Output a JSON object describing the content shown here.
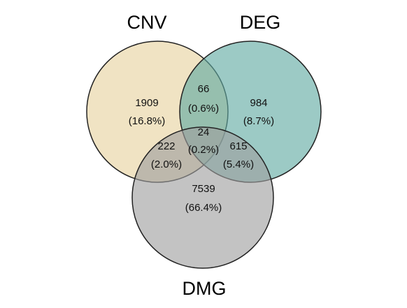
{
  "sets": [
    {
      "name": "CNV",
      "color": "#E6D29E"
    },
    {
      "name": "DEG",
      "color": "#5FA9A2"
    },
    {
      "name": "DMG",
      "color": "#9E9E9E"
    }
  ],
  "regions": {
    "cnv_only": {
      "count": "1909",
      "percent": "(16.8%)"
    },
    "deg_only": {
      "count": "984",
      "percent": "(8.7%)"
    },
    "dmg_only": {
      "count": "7539",
      "percent": "(66.4%)"
    },
    "cnv_deg": {
      "count": "66",
      "percent": "(0.6%)"
    },
    "cnv_dmg": {
      "count": "222",
      "percent": "(2.0%)"
    },
    "deg_dmg": {
      "count": "615",
      "percent": "(5.4%)"
    },
    "cnv_deg_dmg": {
      "count": "24",
      "percent": "(0.2%)"
    }
  }
}
